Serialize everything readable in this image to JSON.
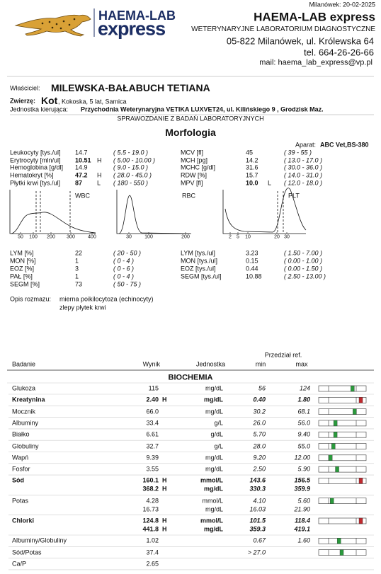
{
  "header": {
    "date": "Milanówek: 20-02-2025",
    "logo_top": "HAEMA-LAB",
    "logo_bottom": "express",
    "company": "HAEMA-LAB express",
    "subtitle": "WETERYNARYJNE LABORATORIUM DIAGNOSTYCZNE",
    "address": "05-822 Milanówek, ul. Królewska 64",
    "phone": "tel. 664-26-26-66",
    "email": "mail: haema_lab_express@vp.pl"
  },
  "patient": {
    "owner_label": "Właściciel:",
    "owner": "MILEWSKA-BAŁABUCH TETIANA",
    "animal_label": "Zwierzę:",
    "animal": "Kot",
    "animal_details": ", Kokoska, 5 lat, Samica",
    "unit_label": "Jednostka kierująca:",
    "unit": "Przychodnia Weterynaryjna VETIKA LUXVET24, ul. Kilińskiego 9 , Grodzisk Maz.",
    "report_title": "SPRAWOZDANIE Z BADAŃ LABORATORYJNYCH"
  },
  "morphology": {
    "title": "Morfologia",
    "device_label": "Aparat:",
    "device": "ABC Vet,BS-380",
    "left": [
      {
        "name": "Leukocyty [tys./ul]",
        "value": "14.7",
        "range": "( 5.5 - 19.0 )"
      },
      {
        "name": "Erytrocyty [mln/ul]",
        "value": "10.51",
        "flag": "H",
        "range": "( 5.00 - 10.00 )"
      },
      {
        "name": "Hemoglobina [g/dl]",
        "value": "14.9",
        "range": "( 9.0 - 15.0 )"
      },
      {
        "name": "Hematokryt [%]",
        "value": "47.2",
        "flag": "H",
        "range": "( 28.0 - 45.0 )"
      },
      {
        "name": "Płytki krwi [tys./ul]",
        "value": "87",
        "flag": "L",
        "range": "( 180 - 550 )"
      }
    ],
    "right": [
      {
        "name": "MCV [fl]",
        "value": "45",
        "range": "( 39 - 55 )"
      },
      {
        "name": "MCH [pg]",
        "value": "14.2",
        "range": "( 13.0 - 17.0 )"
      },
      {
        "name": "MCHC [g/dl]",
        "value": "31.6",
        "range": "( 30.0 - 36.0 )"
      },
      {
        "name": "RDW [%]",
        "value": "15.7",
        "range": "( 14.0 - 31.0 )"
      },
      {
        "name": "MPV [fl]",
        "value": "10.0",
        "flag": "L",
        "range": "( 12.0 - 18.0 )"
      }
    ],
    "histograms": [
      {
        "label": "WBC",
        "ticks": [
          "50",
          "100",
          "200",
          "300",
          "400"
        ]
      },
      {
        "label": "RBC",
        "ticks": [
          "30",
          "100",
          "200"
        ]
      },
      {
        "label": "PLT",
        "ticks": [
          "2",
          "5",
          "10",
          "20",
          "30"
        ]
      }
    ],
    "differential_left": [
      {
        "name": "LYM  [%]",
        "value": "22",
        "range": "( 20 - 50 )"
      },
      {
        "name": "MON  [%]",
        "value": "1",
        "range": "( 0 - 4 )"
      },
      {
        "name": "EOZ  [%]",
        "value": "3",
        "range": "( 0 - 6 )"
      },
      {
        "name": "PAŁ  [%]",
        "value": "1",
        "range": "( 0 - 4 )"
      },
      {
        "name": "SEGM  [%]",
        "value": "73",
        "range": "( 50 - 75 )"
      }
    ],
    "differential_right": [
      {
        "name": "LYM [tys./ul]",
        "value": "3.23",
        "range": "( 1.50 - 7.00 )"
      },
      {
        "name": "MON [tys./ul]",
        "value": "0.15",
        "range": "( 0.00 - 1.00 )"
      },
      {
        "name": "EOZ [tys./ul]",
        "value": "0.44",
        "range": "( 0.00 - 1.50 )"
      },
      {
        "name": "SEGM [tys./ul]",
        "value": "10.88",
        "range": "( 2.50 - 13.00 )"
      }
    ],
    "smear_label": "Opis rozmazu:",
    "smear": [
      "mierna poikilocytoza (echinocyty)",
      "zlepy płytek krwi"
    ]
  },
  "biochemistry": {
    "ref_header": "Przedział ref.",
    "columns": [
      "Badanie",
      "Wynik",
      "Jednostka",
      "min",
      "max"
    ],
    "section": "BIOCHEMIA",
    "rows": [
      {
        "name": "Glukoza",
        "results": [
          {
            "value": "115",
            "unit": "mg/dL",
            "min": "56",
            "max": "124"
          }
        ]
      },
      {
        "name": "Kreatynina",
        "bold": true,
        "results": [
          {
            "value": "2.40",
            "flag": "H",
            "unit": "mg/dL",
            "min": "0.40",
            "max": "1.80"
          }
        ]
      },
      {
        "name": "Mocznik",
        "results": [
          {
            "value": "66.0",
            "unit": "mg/dL",
            "min": "30.2",
            "max": "68.1"
          }
        ]
      },
      {
        "name": "Albuminy",
        "results": [
          {
            "value": "33.4",
            "unit": "g/L",
            "min": "26.0",
            "max": "56.0"
          }
        ]
      },
      {
        "name": "Białko",
        "results": [
          {
            "value": "6.61",
            "unit": "g/dL",
            "min": "5.70",
            "max": "9.40"
          }
        ]
      },
      {
        "name": "Globuliny",
        "results": [
          {
            "value": "32.7",
            "unit": "g/L",
            "min": "28.0",
            "max": "55.0"
          }
        ]
      },
      {
        "name": "Wapń",
        "results": [
          {
            "value": "9.39",
            "unit": "mg/dL",
            "min": "9.20",
            "max": "12.00"
          }
        ]
      },
      {
        "name": "Fosfor",
        "results": [
          {
            "value": "3.55",
            "unit": "mg/dL",
            "min": "2.50",
            "max": "5.90"
          }
        ]
      },
      {
        "name": "Sód",
        "bold": true,
        "results": [
          {
            "value": "160.1",
            "flag": "H",
            "unit": "mmol/L",
            "min": "143.6",
            "max": "156.5"
          },
          {
            "value": "368.2",
            "flag": "H",
            "unit": "mg/dL",
            "min": "330.3",
            "max": "359.9"
          }
        ]
      },
      {
        "name": "Potas",
        "results": [
          {
            "value": "4.28",
            "unit": "mmol/L",
            "min": "4.10",
            "max": "5.60"
          },
          {
            "value": "16.73",
            "unit": "mg/dL",
            "min": "16.03",
            "max": "21.90"
          }
        ]
      },
      {
        "name": "Chlorki",
        "bold": true,
        "results": [
          {
            "value": "124.8",
            "flag": "H",
            "unit": "mmol/L",
            "min": "101.5",
            "max": "118.4"
          },
          {
            "value": "441.8",
            "flag": "H",
            "unit": "mg/dL",
            "min": "359.3",
            "max": "419.1"
          }
        ]
      },
      {
        "name": "Albuminy/Globuliny",
        "results": [
          {
            "value": "1.02",
            "min": "0.67",
            "max": "1.60"
          }
        ]
      },
      {
        "name": "Sód/Potas",
        "results": [
          {
            "value": "37.4",
            "min": "> 27.0"
          }
        ]
      },
      {
        "name": "Ca/P",
        "results": [
          {
            "value": "2.65"
          }
        ]
      }
    ]
  }
}
